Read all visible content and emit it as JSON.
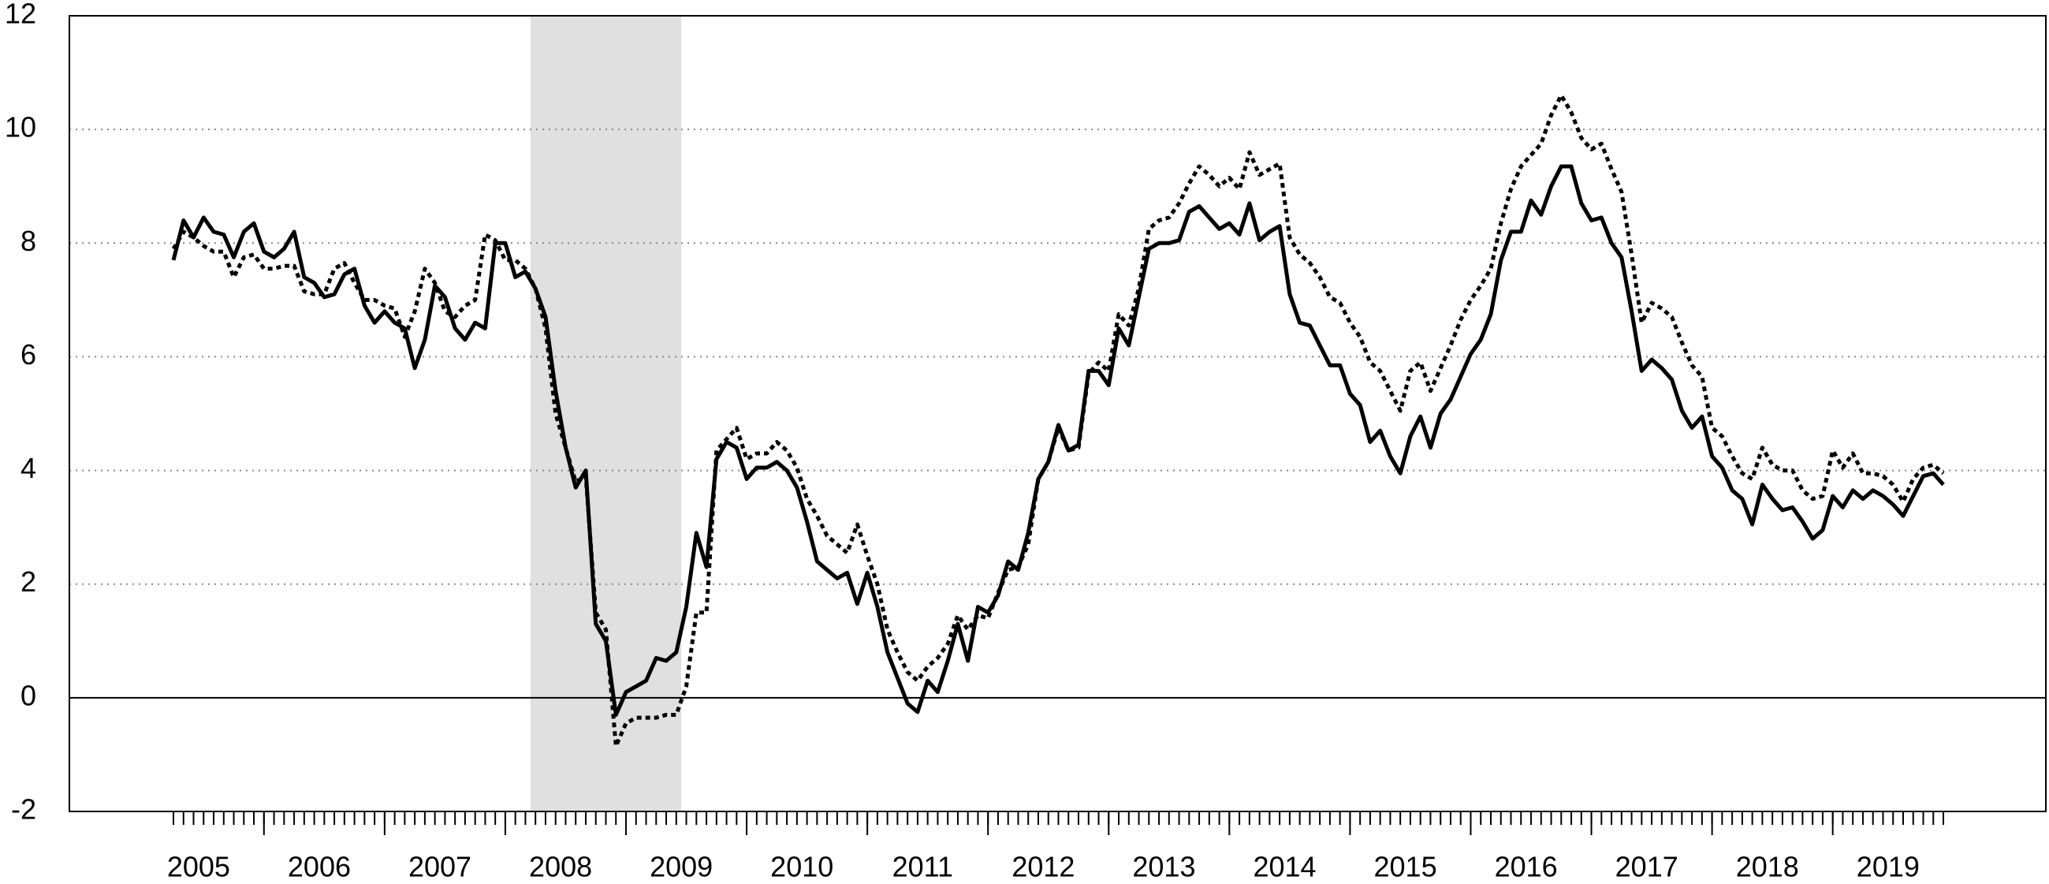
{
  "chart_data": {
    "type": "line",
    "categories": [
      null,
      null,
      null,
      "2005",
      null,
      null,
      null,
      null,
      null,
      null,
      null,
      null,
      null,
      null,
      null,
      "2006",
      null,
      null,
      null,
      null,
      null,
      null,
      null,
      null,
      null,
      null,
      null,
      "2007",
      null,
      null,
      null,
      null,
      null,
      null,
      null,
      null,
      null,
      null,
      null,
      "2008",
      null,
      null,
      null,
      null,
      null,
      null,
      null,
      null,
      null,
      null,
      null,
      "2009",
      null,
      null,
      null,
      null,
      null,
      null,
      null,
      null,
      null,
      null,
      null,
      "2010",
      null,
      null,
      null,
      null,
      null,
      null,
      null,
      null,
      null,
      null,
      null,
      "2011",
      null,
      null,
      null,
      null,
      null,
      null,
      null,
      null,
      null,
      null,
      null,
      "2012",
      null,
      null,
      null,
      null,
      null,
      null,
      null,
      null,
      null,
      null,
      null,
      "2013",
      null,
      null,
      null,
      null,
      null,
      null,
      null,
      null,
      null,
      null,
      null,
      "2014",
      null,
      null,
      null,
      null,
      null,
      null,
      null,
      null,
      null,
      null,
      null,
      "2015",
      null,
      null,
      null,
      null,
      null,
      null,
      null,
      null,
      null,
      null,
      null,
      "2016",
      null,
      null,
      null,
      null,
      null,
      null,
      null,
      null,
      null,
      null,
      null,
      "2017",
      null,
      null,
      null,
      null,
      null,
      null,
      null,
      null,
      null,
      null,
      null,
      "2018",
      null,
      null,
      null,
      null,
      null,
      null,
      null,
      null,
      null,
      null,
      null,
      "2019",
      null,
      null,
      null,
      null,
      null
    ],
    "series": [
      {
        "color": "#000000",
        "line_style": "solid",
        "values": [
          7.7,
          8.4,
          8.1,
          8.45,
          8.2,
          8.15,
          7.75,
          8.2,
          8.35,
          7.85,
          7.75,
          7.9,
          8.2,
          7.4,
          7.3,
          7.05,
          7.1,
          7.45,
          7.55,
          6.9,
          6.6,
          6.8,
          6.6,
          6.5,
          5.8,
          6.3,
          7.25,
          7.05,
          6.5,
          6.3,
          6.6,
          6.5,
          8.0,
          8.0,
          7.4,
          7.5,
          7.2,
          6.7,
          5.4,
          4.4,
          3.7,
          4.0,
          1.3,
          1.0,
          -0.3,
          0.1,
          0.2,
          0.3,
          0.7,
          0.65,
          0.8,
          1.6,
          2.9,
          2.3,
          4.2,
          4.5,
          4.4,
          3.85,
          4.05,
          4.05,
          4.15,
          4.0,
          3.7,
          3.1,
          2.4,
          2.25,
          2.1,
          2.2,
          1.65,
          2.2,
          1.6,
          0.8,
          0.35,
          -0.1,
          -0.25,
          0.3,
          0.1,
          0.65,
          1.3,
          0.65,
          1.6,
          1.5,
          1.8,
          2.4,
          2.25,
          2.9,
          3.85,
          4.15,
          4.8,
          4.35,
          4.45,
          5.75,
          5.75,
          5.5,
          6.5,
          6.2,
          7.05,
          7.9,
          8.0,
          8.0,
          8.05,
          8.55,
          8.65,
          8.45,
          8.25,
          8.35,
          8.15,
          8.7,
          8.05,
          8.2,
          8.3,
          7.1,
          6.6,
          6.55,
          6.2,
          5.85,
          5.85,
          5.35,
          5.15,
          4.5,
          4.7,
          4.25,
          3.95,
          4.6,
          4.95,
          4.4,
          5.0,
          5.25,
          5.65,
          6.05,
          6.3,
          6.75,
          7.7,
          8.2,
          8.2,
          8.75,
          8.5,
          9.0,
          9.35,
          9.35,
          8.7,
          8.4,
          8.45,
          8.0,
          7.75,
          6.8,
          5.75,
          5.95,
          5.8,
          5.6,
          5.05,
          4.75,
          4.95,
          4.25,
          4.05,
          3.65,
          3.5,
          3.05,
          3.75,
          3.5,
          3.3,
          3.35,
          3.1,
          2.8,
          2.95,
          3.55,
          3.35,
          3.65,
          3.5,
          3.65,
          3.55,
          3.4,
          3.2,
          3.55,
          3.9,
          3.95,
          3.75
        ]
      },
      {
        "color": "#000000",
        "line_style": "dotted",
        "values": [
          7.9,
          8.2,
          8.1,
          7.95,
          7.85,
          7.85,
          7.4,
          7.75,
          7.8,
          7.55,
          7.55,
          7.6,
          7.6,
          7.15,
          7.1,
          7.1,
          7.55,
          7.65,
          7.3,
          7.0,
          7.0,
          6.9,
          6.85,
          6.35,
          6.8,
          7.55,
          7.3,
          6.8,
          6.7,
          6.9,
          7.0,
          8.15,
          8.05,
          7.7,
          7.7,
          7.55,
          7.2,
          6.5,
          5.0,
          4.4,
          3.8,
          3.9,
          1.5,
          1.2,
          -0.85,
          -0.45,
          -0.35,
          -0.35,
          -0.35,
          -0.3,
          -0.3,
          0.2,
          1.5,
          1.5,
          4.35,
          4.55,
          4.75,
          4.2,
          4.3,
          4.3,
          4.5,
          4.35,
          4.05,
          3.5,
          3.2,
          2.85,
          2.7,
          2.55,
          3.05,
          2.5,
          2.0,
          1.2,
          0.8,
          0.45,
          0.3,
          0.55,
          0.7,
          0.95,
          1.45,
          1.2,
          1.45,
          1.4,
          1.85,
          2.25,
          2.3,
          2.7,
          3.85,
          4.15,
          4.75,
          4.35,
          4.4,
          5.7,
          5.9,
          5.75,
          6.75,
          6.55,
          7.2,
          8.25,
          8.4,
          8.45,
          8.7,
          9.05,
          9.35,
          9.2,
          9.0,
          9.15,
          8.95,
          9.6,
          9.2,
          9.3,
          9.4,
          8.1,
          7.8,
          7.65,
          7.4,
          7.05,
          6.95,
          6.6,
          6.35,
          5.9,
          5.75,
          5.4,
          5.05,
          5.75,
          5.9,
          5.4,
          5.8,
          6.2,
          6.65,
          7.0,
          7.25,
          7.55,
          8.35,
          8.95,
          9.35,
          9.55,
          9.75,
          10.25,
          10.6,
          10.3,
          9.85,
          9.65,
          9.75,
          9.3,
          8.9,
          7.8,
          6.6,
          6.95,
          6.85,
          6.7,
          6.25,
          5.85,
          5.65,
          4.75,
          4.6,
          4.25,
          3.95,
          3.85,
          4.4,
          4.1,
          4.0,
          4.0,
          3.65,
          3.5,
          3.55,
          4.35,
          4.05,
          4.3,
          3.95,
          3.95,
          3.9,
          3.75,
          3.45,
          3.85,
          4.05,
          4.1,
          3.95
        ]
      }
    ],
    "ylim": [
      -2,
      12
    ],
    "yticks": [
      -2,
      0,
      2,
      4,
      6,
      8,
      10,
      12
    ],
    "grid": true
  }
}
